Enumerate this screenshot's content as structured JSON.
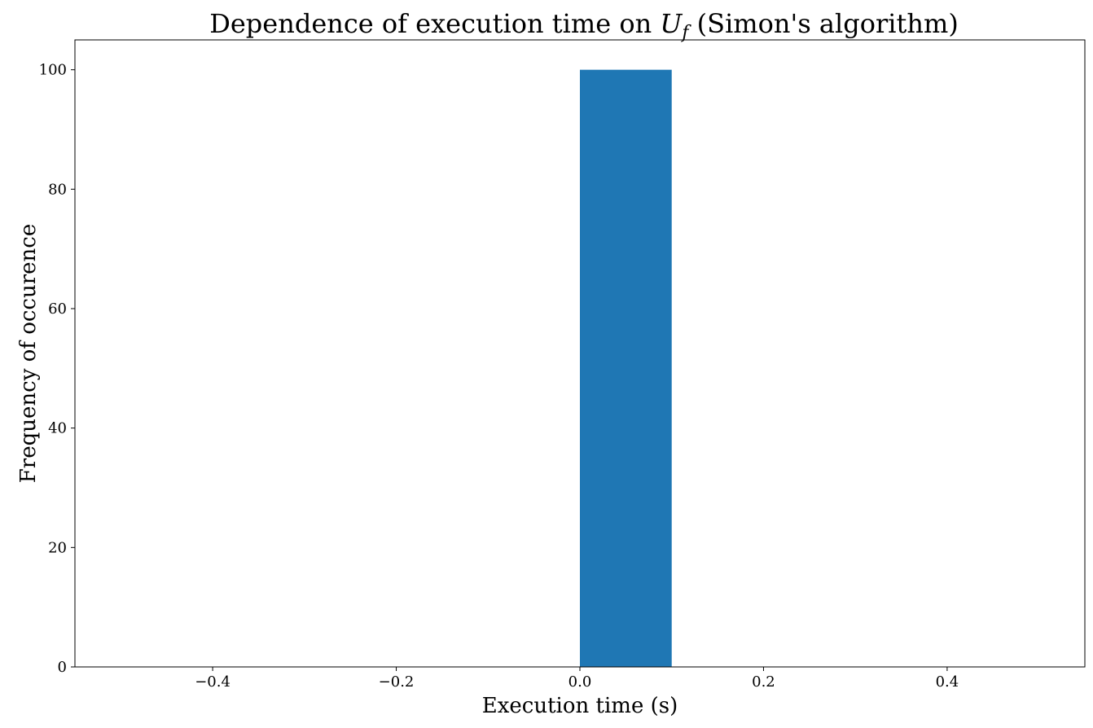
{
  "chart_data": {
    "type": "bar",
    "title": {
      "prefix": "Dependence of execution time on ",
      "math_main": "U",
      "math_sub": "f",
      "suffix": " (Simon's algorithm)"
    },
    "xlabel": "Execution time (s)",
    "ylabel": "Frequency of occurence",
    "xlim": [
      -0.55,
      0.55
    ],
    "ylim": [
      0,
      105
    ],
    "x_ticks": [
      -0.4,
      -0.2,
      0.0,
      0.2,
      0.4
    ],
    "x_tick_labels": [
      "−0.4",
      "−0.2",
      "0.0",
      "0.2",
      "0.4"
    ],
    "y_ticks": [
      0,
      20,
      40,
      60,
      80,
      100
    ],
    "y_tick_labels": [
      "0",
      "20",
      "40",
      "60",
      "80",
      "100"
    ],
    "bins": [
      {
        "x0": 0.0,
        "x1": 0.1,
        "value": 100
      }
    ],
    "series": [
      {
        "color": "#1f77b4"
      }
    ],
    "grid": false,
    "legend": "none"
  }
}
